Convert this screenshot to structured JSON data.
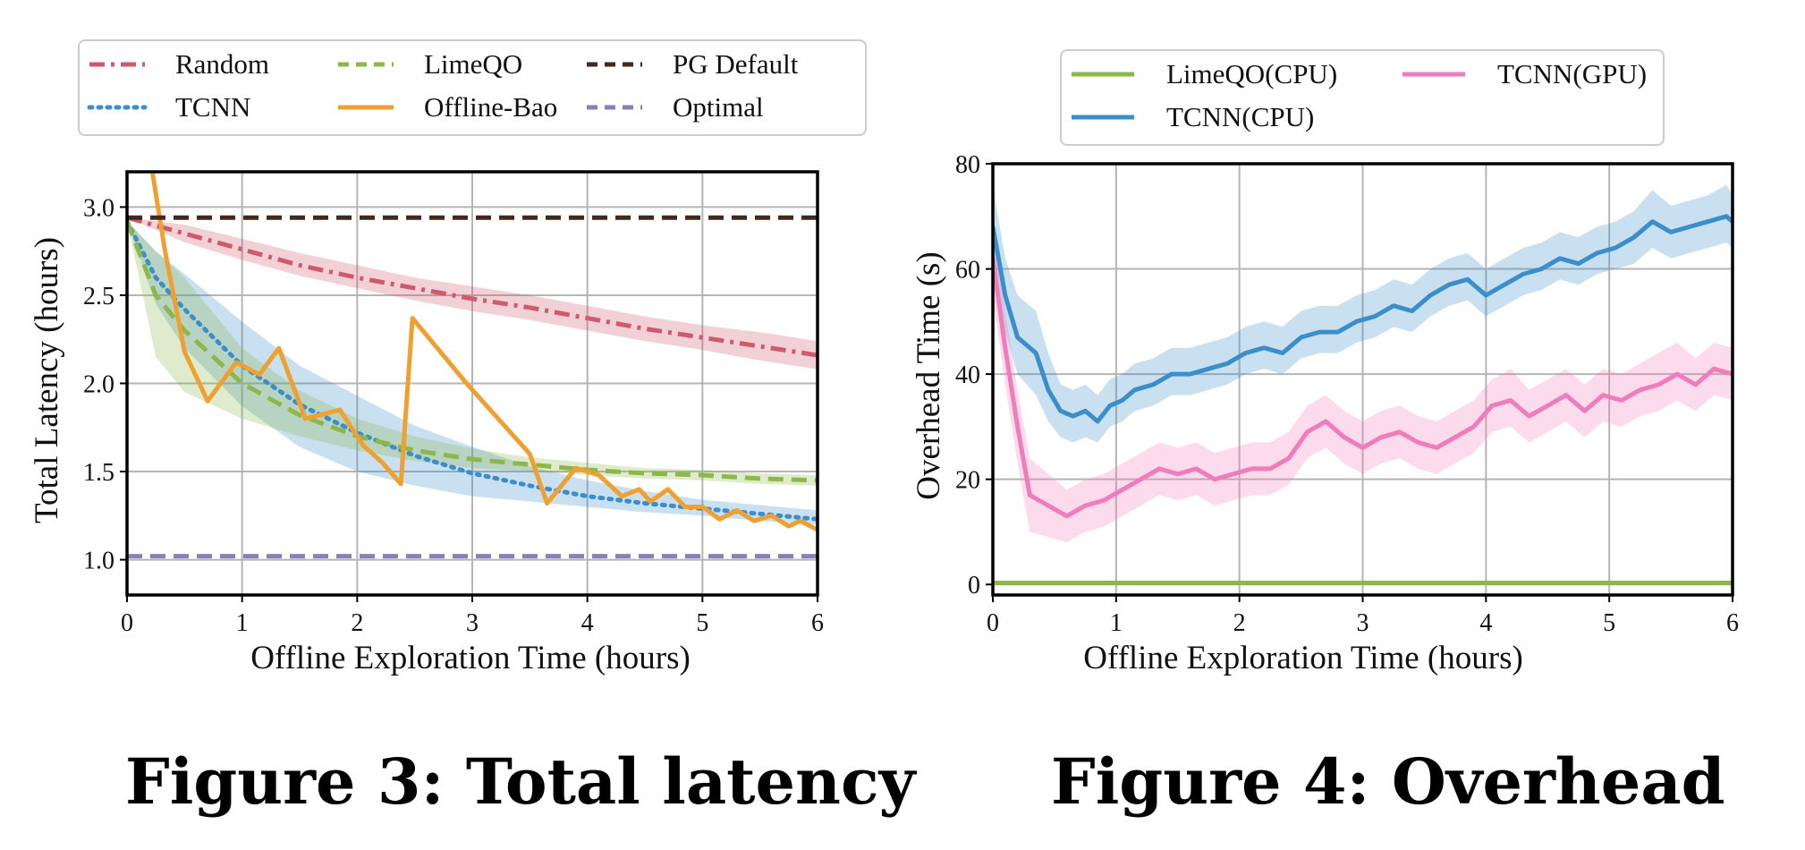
{
  "captions": {
    "fig3": "Figure 3: Total latency",
    "fig4": "Figure 4: Overhead"
  },
  "chart_data": [
    {
      "type": "line",
      "title": "",
      "xlabel": "Offline Exploration Time (hours)",
      "ylabel": "Total Latency (hours)",
      "xlim": [
        0,
        6
      ],
      "ylim": [
        0.8,
        3.2
      ],
      "xticks": [
        0,
        1,
        2,
        3,
        4,
        5,
        6
      ],
      "yticks": [
        1.0,
        1.5,
        2.0,
        2.5,
        3.0
      ],
      "grid": true,
      "legend_placement": "top, outside plot",
      "legend_columns": 3,
      "series": [
        {
          "name": "Random",
          "color": "#cf5a6c",
          "dash": "dashdot",
          "x": [
            0,
            0.5,
            1,
            1.5,
            2,
            2.5,
            3,
            3.5,
            4,
            4.5,
            5,
            5.5,
            6
          ],
          "values": [
            2.94,
            2.85,
            2.76,
            2.67,
            2.6,
            2.54,
            2.48,
            2.43,
            2.37,
            2.31,
            2.26,
            2.21,
            2.16
          ],
          "band_low": [
            2.94,
            2.8,
            2.7,
            2.61,
            2.54,
            2.47,
            2.41,
            2.36,
            2.3,
            2.24,
            2.19,
            2.13,
            2.08
          ],
          "band_high": [
            2.94,
            2.9,
            2.82,
            2.74,
            2.67,
            2.6,
            2.55,
            2.5,
            2.44,
            2.38,
            2.33,
            2.29,
            2.24
          ]
        },
        {
          "name": "TCNN",
          "color": "#3a8fca",
          "dash": "dotted",
          "x": [
            0,
            0.25,
            0.5,
            1,
            1.5,
            2,
            2.5,
            3,
            3.5,
            4,
            4.5,
            5,
            5.5,
            6
          ],
          "values": [
            2.92,
            2.6,
            2.42,
            2.1,
            1.88,
            1.72,
            1.59,
            1.49,
            1.42,
            1.36,
            1.32,
            1.29,
            1.26,
            1.23
          ],
          "band_low": [
            2.92,
            2.45,
            2.2,
            1.87,
            1.64,
            1.5,
            1.42,
            1.36,
            1.33,
            1.3,
            1.27,
            1.25,
            1.22,
            1.2
          ],
          "band_high": [
            2.92,
            2.75,
            2.62,
            2.35,
            2.1,
            1.93,
            1.76,
            1.64,
            1.53,
            1.45,
            1.39,
            1.34,
            1.31,
            1.28
          ]
        },
        {
          "name": "LimeQO",
          "color": "#8cb84a",
          "dash": "dashed",
          "x": [
            0,
            0.25,
            0.5,
            1,
            1.5,
            2,
            2.5,
            3,
            3.5,
            4,
            4.5,
            5,
            5.5,
            6
          ],
          "values": [
            2.92,
            2.5,
            2.3,
            2.0,
            1.82,
            1.7,
            1.62,
            1.57,
            1.54,
            1.51,
            1.49,
            1.48,
            1.46,
            1.45
          ],
          "band_low": [
            2.92,
            2.15,
            1.95,
            1.8,
            1.7,
            1.62,
            1.56,
            1.52,
            1.5,
            1.48,
            1.46,
            1.45,
            1.43,
            1.42
          ],
          "band_high": [
            2.92,
            2.75,
            2.6,
            2.2,
            1.96,
            1.8,
            1.7,
            1.63,
            1.58,
            1.55,
            1.52,
            1.51,
            1.49,
            1.48
          ]
        },
        {
          "name": "Offline-Bao",
          "color": "#f0a030",
          "dash": "solid",
          "x": [
            0.22,
            0.33,
            0.5,
            0.7,
            0.95,
            1.15,
            1.32,
            1.55,
            1.85,
            2.05,
            2.22,
            2.38,
            2.48,
            2.95,
            3.5,
            3.65,
            3.9,
            4.1,
            4.3,
            4.45,
            4.55,
            4.7,
            4.85,
            5.0,
            5.15,
            5.3,
            5.45,
            5.6,
            5.75,
            5.85,
            6.0
          ],
          "values": [
            3.2,
            2.75,
            2.18,
            1.9,
            2.12,
            2.05,
            2.2,
            1.8,
            1.85,
            1.65,
            1.55,
            1.43,
            2.37,
            2.0,
            1.6,
            1.32,
            1.52,
            1.48,
            1.36,
            1.4,
            1.33,
            1.4,
            1.3,
            1.3,
            1.23,
            1.28,
            1.22,
            1.25,
            1.19,
            1.22,
            1.17
          ]
        },
        {
          "name": "PG Default",
          "color": "#3e2a1e",
          "dash": "dashed",
          "x": [
            0,
            6
          ],
          "values": [
            2.94,
            2.94
          ]
        },
        {
          "name": "Optimal",
          "color": "#8a7fbc",
          "dash": "dashed",
          "x": [
            0,
            6
          ],
          "values": [
            1.02,
            1.02
          ]
        }
      ]
    },
    {
      "type": "line",
      "title": "",
      "xlabel": "Offline Exploration Time (hours)",
      "ylabel": "Overhead Time (s)",
      "xlim": [
        0,
        6
      ],
      "ylim": [
        -2,
        80
      ],
      "xticks": [
        0,
        1,
        2,
        3,
        4,
        5,
        6
      ],
      "yticks": [
        0,
        20,
        40,
        60,
        80
      ],
      "grid": true,
      "legend_placement": "top, outside plot",
      "legend_columns": 2,
      "series": [
        {
          "name": "LimeQO(CPU)",
          "color": "#8cb84a",
          "dash": "solid",
          "x": [
            0,
            6
          ],
          "values": [
            0.3,
            0.3
          ]
        },
        {
          "name": "TCNN(CPU)",
          "color": "#3a8fca",
          "dash": "solid",
          "x": [
            0,
            0.1,
            0.2,
            0.35,
            0.45,
            0.55,
            0.65,
            0.75,
            0.85,
            0.95,
            1.05,
            1.15,
            1.3,
            1.45,
            1.6,
            1.75,
            1.9,
            2.05,
            2.2,
            2.35,
            2.5,
            2.65,
            2.8,
            2.95,
            3.1,
            3.25,
            3.4,
            3.55,
            3.7,
            3.85,
            4.0,
            4.15,
            4.3,
            4.45,
            4.6,
            4.75,
            4.9,
            5.05,
            5.2,
            5.35,
            5.5,
            5.65,
            5.8,
            5.95,
            6.0
          ],
          "values": [
            68,
            55,
            47,
            44,
            37,
            33,
            32,
            33,
            31,
            34,
            35,
            37,
            38,
            40,
            40,
            41,
            42,
            44,
            45,
            44,
            47,
            48,
            48,
            50,
            51,
            53,
            52,
            55,
            57,
            58,
            55,
            57,
            59,
            60,
            62,
            61,
            63,
            64,
            66,
            69,
            67,
            68,
            69,
            70,
            69
          ],
          "band_low": [
            60,
            48,
            40,
            36,
            31,
            28,
            27,
            28,
            27,
            30,
            31,
            33,
            34,
            36,
            36,
            37,
            38,
            40,
            41,
            40,
            43,
            44,
            44,
            46,
            47,
            49,
            48,
            51,
            53,
            54,
            51,
            53,
            55,
            56,
            58,
            57,
            59,
            60,
            61,
            64,
            62,
            63,
            64,
            65,
            64
          ],
          "band_high": [
            76,
            62,
            55,
            52,
            44,
            38,
            37,
            38,
            36,
            39,
            40,
            42,
            43,
            45,
            45,
            46,
            47,
            49,
            50,
            49,
            52,
            53,
            53,
            55,
            56,
            58,
            57,
            60,
            62,
            63,
            60,
            62,
            64,
            65,
            67,
            66,
            68,
            69,
            71,
            75,
            72,
            73,
            74,
            76,
            74
          ]
        },
        {
          "name": "TCNN(GPU)",
          "color": "#f07cbc",
          "dash": "solid",
          "x": [
            0,
            0.1,
            0.2,
            0.3,
            0.45,
            0.6,
            0.75,
            0.9,
            1.05,
            1.2,
            1.35,
            1.5,
            1.65,
            1.8,
            1.95,
            2.1,
            2.25,
            2.4,
            2.55,
            2.7,
            2.85,
            3.0,
            3.15,
            3.3,
            3.45,
            3.6,
            3.75,
            3.9,
            4.05,
            4.2,
            4.35,
            4.5,
            4.65,
            4.8,
            4.95,
            5.1,
            5.25,
            5.4,
            5.55,
            5.7,
            5.85,
            6.0
          ],
          "values": [
            62,
            45,
            30,
            17,
            15,
            13,
            15,
            16,
            18,
            20,
            22,
            21,
            22,
            20,
            21,
            22,
            22,
            24,
            29,
            31,
            28,
            26,
            28,
            29,
            27,
            26,
            28,
            30,
            34,
            35,
            32,
            34,
            36,
            33,
            36,
            35,
            37,
            38,
            40,
            38,
            41,
            40
          ],
          "band_low": [
            55,
            38,
            23,
            10,
            9,
            8,
            10,
            11,
            13,
            15,
            17,
            16,
            17,
            15,
            16,
            17,
            17,
            19,
            24,
            26,
            23,
            21,
            23,
            24,
            22,
            21,
            23,
            25,
            29,
            30,
            27,
            29,
            31,
            28,
            31,
            30,
            32,
            33,
            35,
            33,
            36,
            35
          ],
          "band_high": [
            69,
            52,
            37,
            24,
            21,
            18,
            20,
            21,
            23,
            25,
            27,
            26,
            27,
            25,
            26,
            27,
            27,
            29,
            34,
            36,
            33,
            31,
            33,
            34,
            32,
            31,
            33,
            35,
            39,
            41,
            37,
            39,
            41,
            38,
            41,
            40,
            42,
            44,
            46,
            43,
            46,
            45
          ]
        }
      ]
    }
  ]
}
